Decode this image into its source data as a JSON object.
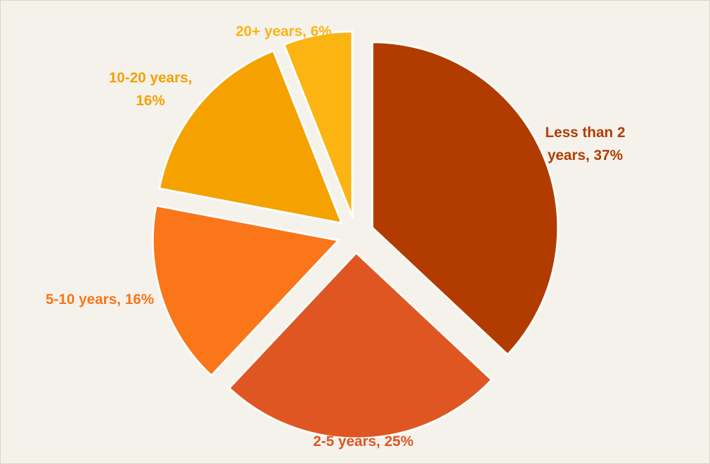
{
  "chart_data": {
    "type": "pie",
    "title": "",
    "slices": [
      {
        "label": "Less than 2 years",
        "value": 37,
        "label_lines": [
          "Less than 2",
          "years, 37%"
        ],
        "color": "#b23c00"
      },
      {
        "label": "2-5 years",
        "value": 25,
        "label_lines": [
          "2-5 years, 25%"
        ],
        "color": "#e05622"
      },
      {
        "label": "5-10 years",
        "value": 16,
        "label_lines": [
          "5-10 years, 16%"
        ],
        "color": "#fb7519"
      },
      {
        "label": "10-20 years",
        "value": 16,
        "label_lines": [
          "10-20 years,",
          "16%"
        ],
        "color": "#f5a100"
      },
      {
        "label": "20+ years",
        "value": 6,
        "label_lines": [
          "20+ years, 6%"
        ],
        "color": "#fbb412"
      }
    ],
    "start_angle": "12 o'clock",
    "direction": "clockwise",
    "exploded": true,
    "legend": "none",
    "colors": {
      "background": "#f5f2ec",
      "slice_border": "#ffffff"
    }
  }
}
